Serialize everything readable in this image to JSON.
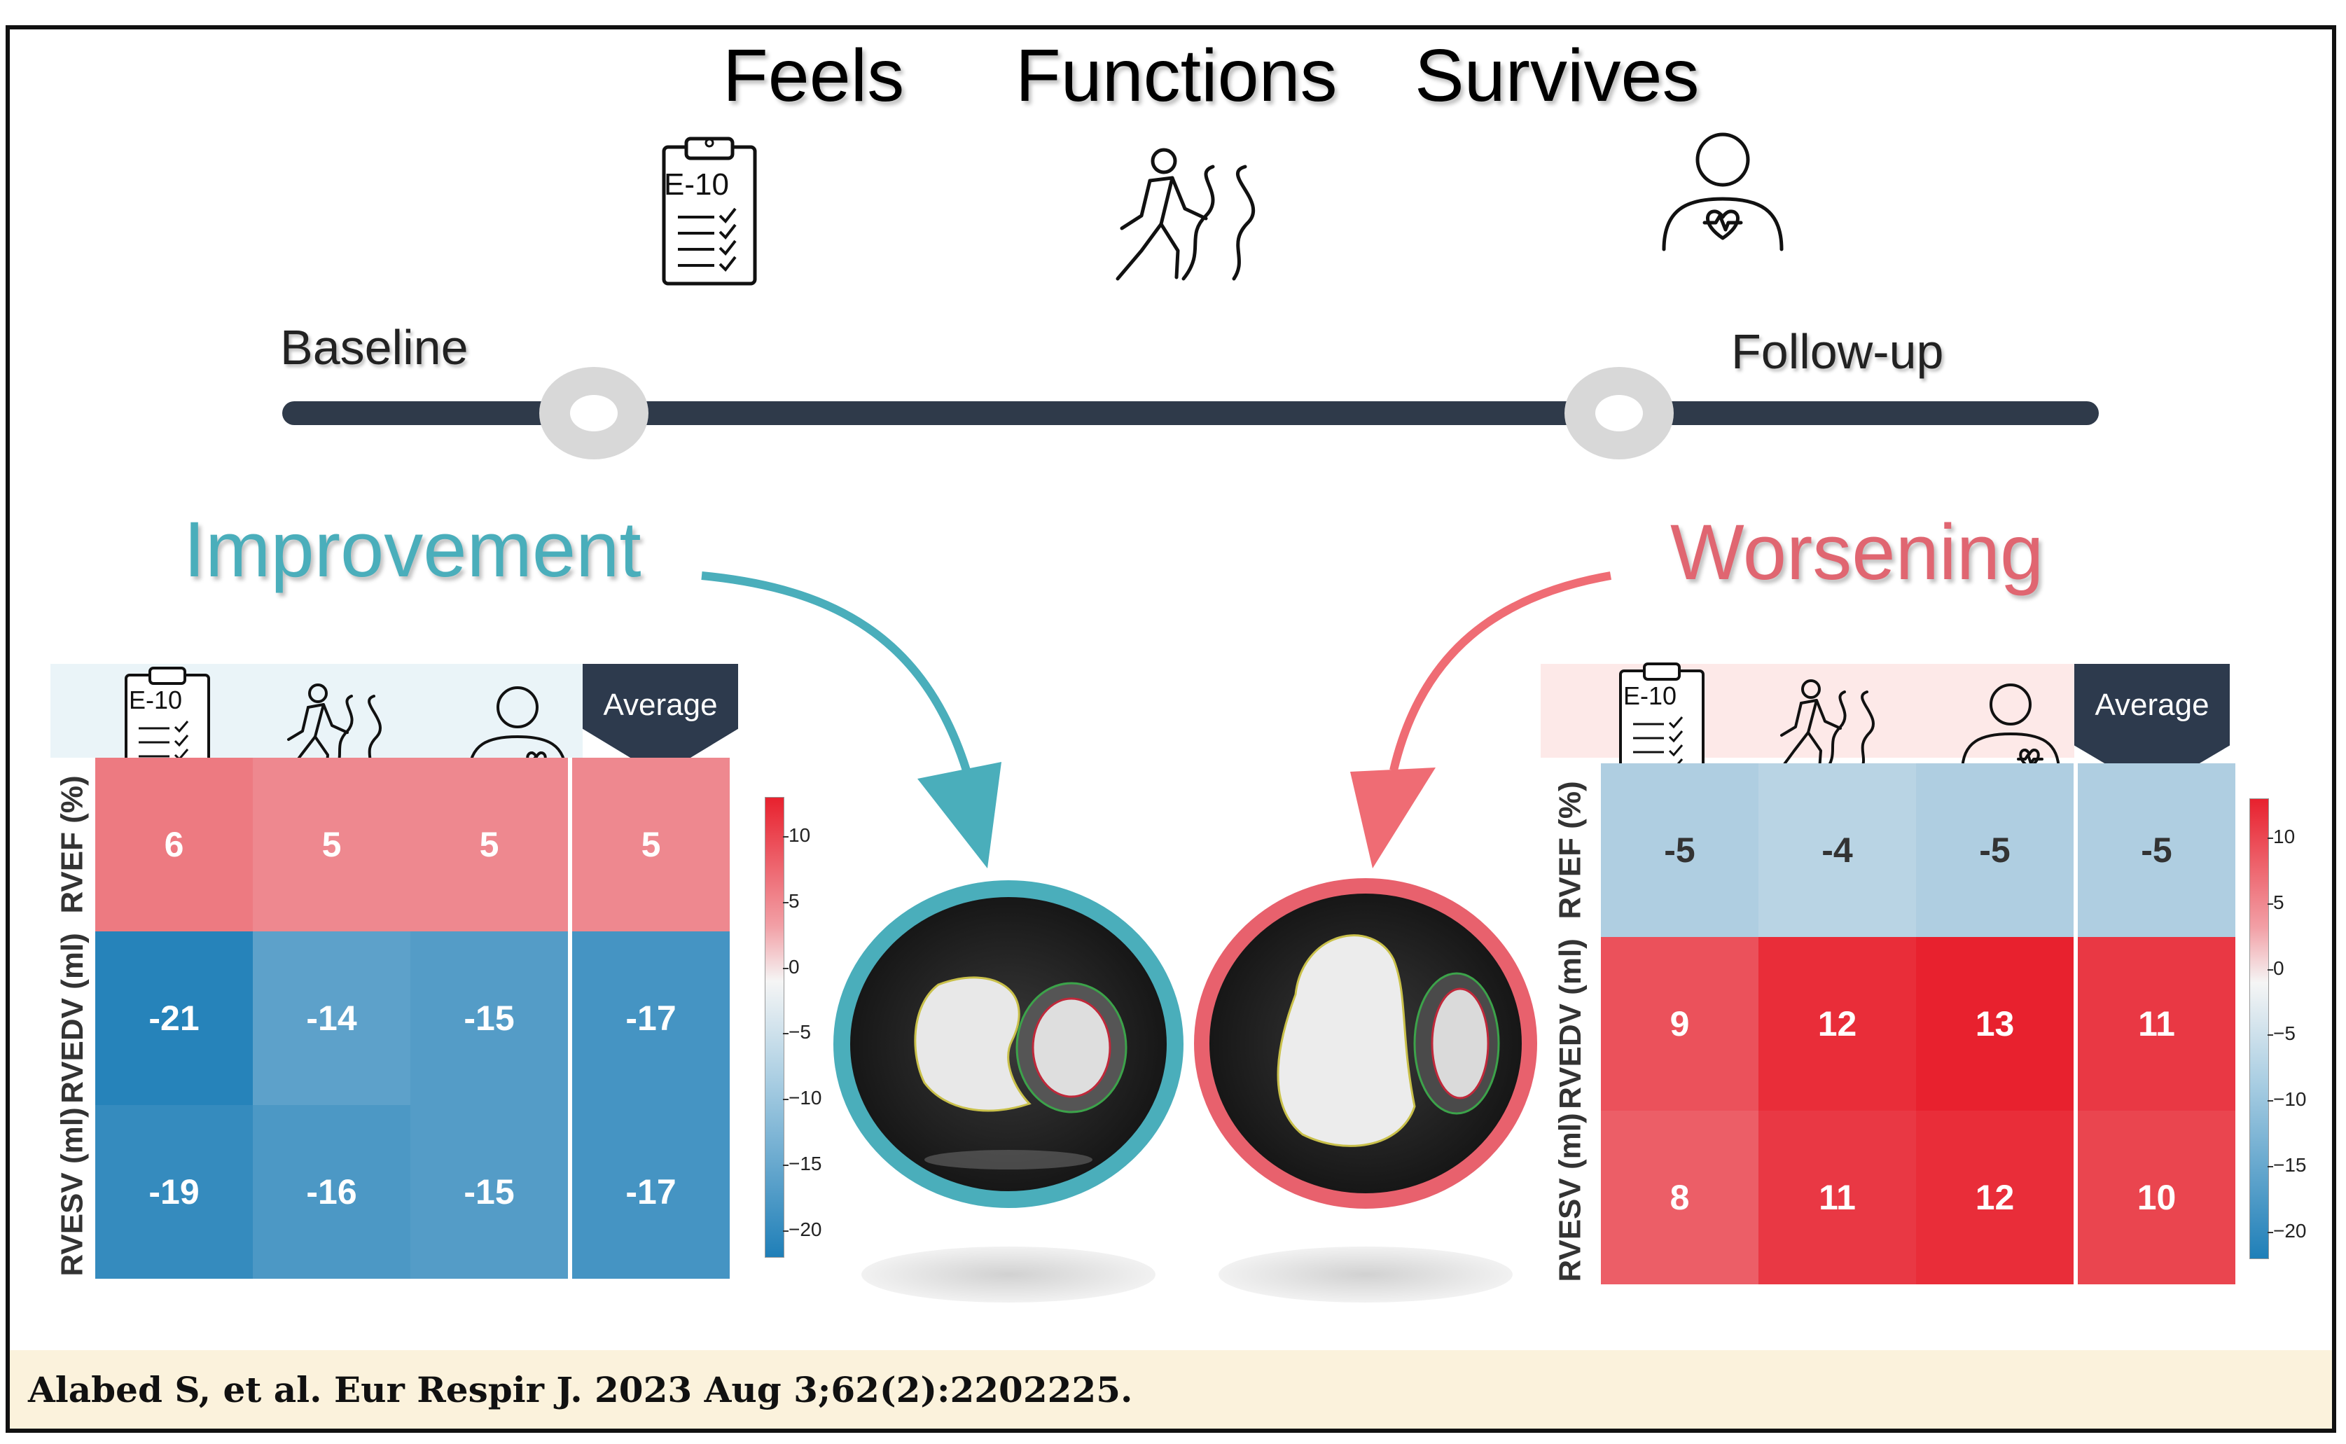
{
  "header": {
    "feels": "Feels",
    "functions": "Functions",
    "survives": "Survives",
    "questionnaire_icon_text": "E-10"
  },
  "timeline": {
    "baseline": "Baseline",
    "followup": "Follow-up"
  },
  "improvement": {
    "title": "Improvement",
    "color": "#4aaebb",
    "table": {
      "header_icons": [
        "questionnaire-icon",
        "walking-person-icon",
        "person-heart-icon"
      ],
      "icon_text": "E-10",
      "average_label": "Average",
      "row_labels": [
        "RVEF (%)",
        "RVEDV (ml)",
        "RVESV (ml)"
      ],
      "rows": [
        [
          "6",
          "5",
          "5",
          "5"
        ],
        [
          "-21",
          "-14",
          "-15",
          "-17"
        ],
        [
          "-19",
          "-16",
          "-15",
          "-17"
        ]
      ]
    }
  },
  "worsening": {
    "title": "Worsening",
    "color": "#e06671",
    "table": {
      "header_icons": [
        "questionnaire-icon",
        "walking-person-icon",
        "person-heart-icon"
      ],
      "icon_text": "E-10",
      "average_label": "Average",
      "row_labels": [
        "RVEF (%)",
        "RVEDV (ml)",
        "RVESV (ml)"
      ],
      "rows": [
        [
          "-5",
          "-4",
          "-5",
          "-5"
        ],
        [
          "9",
          "12",
          "13",
          "11"
        ],
        [
          "8",
          "11",
          "12",
          "10"
        ]
      ]
    }
  },
  "colorbar": {
    "ticks": [
      "10",
      "5",
      "0",
      "−5",
      "−10",
      "−15",
      "−20"
    ],
    "tick_values": [
      10,
      5,
      0,
      -5,
      -10,
      -15,
      -20
    ],
    "range": [
      -22,
      13
    ],
    "colors": {
      "positive": "#e8212e",
      "zero": "#f5f5f5",
      "negative": "#1f7fb8"
    }
  },
  "images": {
    "left": "cardiac-mri-short-axis-improvement",
    "right": "cardiac-mri-short-axis-worsening"
  },
  "citation": "Alabed S, et al. Eur Respir J. 2023 Aug 3;62(2):2202225."
}
